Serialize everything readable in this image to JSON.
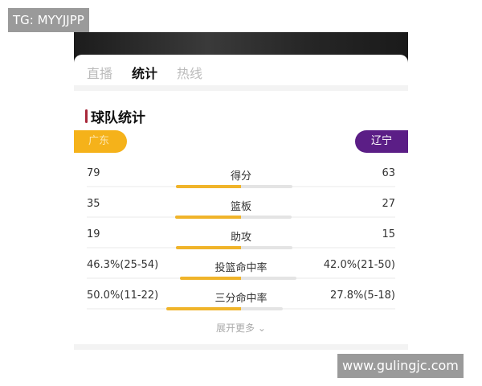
{
  "watermarks": {
    "top_left": "TG: MYYJJPP",
    "bottom_right": "www.gulingjc.com"
  },
  "tabs": [
    {
      "label": "直播",
      "active": false
    },
    {
      "label": "统计",
      "active": true
    },
    {
      "label": "热线",
      "active": false
    }
  ],
  "section_title": "球队统计",
  "teams": {
    "left": "广东",
    "right": "辽宁",
    "left_color": "#f5b21a",
    "right_color": "#5b1e86"
  },
  "stats": [
    {
      "name": "得分",
      "left": "79",
      "right": "63",
      "lnum": 79,
      "rnum": 63
    },
    {
      "name": "篮板",
      "left": "35",
      "right": "27",
      "lnum": 35,
      "rnum": 27
    },
    {
      "name": "助攻",
      "left": "19",
      "right": "15",
      "lnum": 19,
      "rnum": 15
    },
    {
      "name": "投篮命中率",
      "left": "46.3%(25-54)",
      "right": "42.0%(21-50)",
      "lnum": 46.3,
      "rnum": 42.0
    },
    {
      "name": "三分命中率",
      "left": "50.0%(11-22)",
      "right": "27.8%(5-18)",
      "lnum": 50.0,
      "rnum": 27.8
    }
  ],
  "expand_label": "展开更多"
}
